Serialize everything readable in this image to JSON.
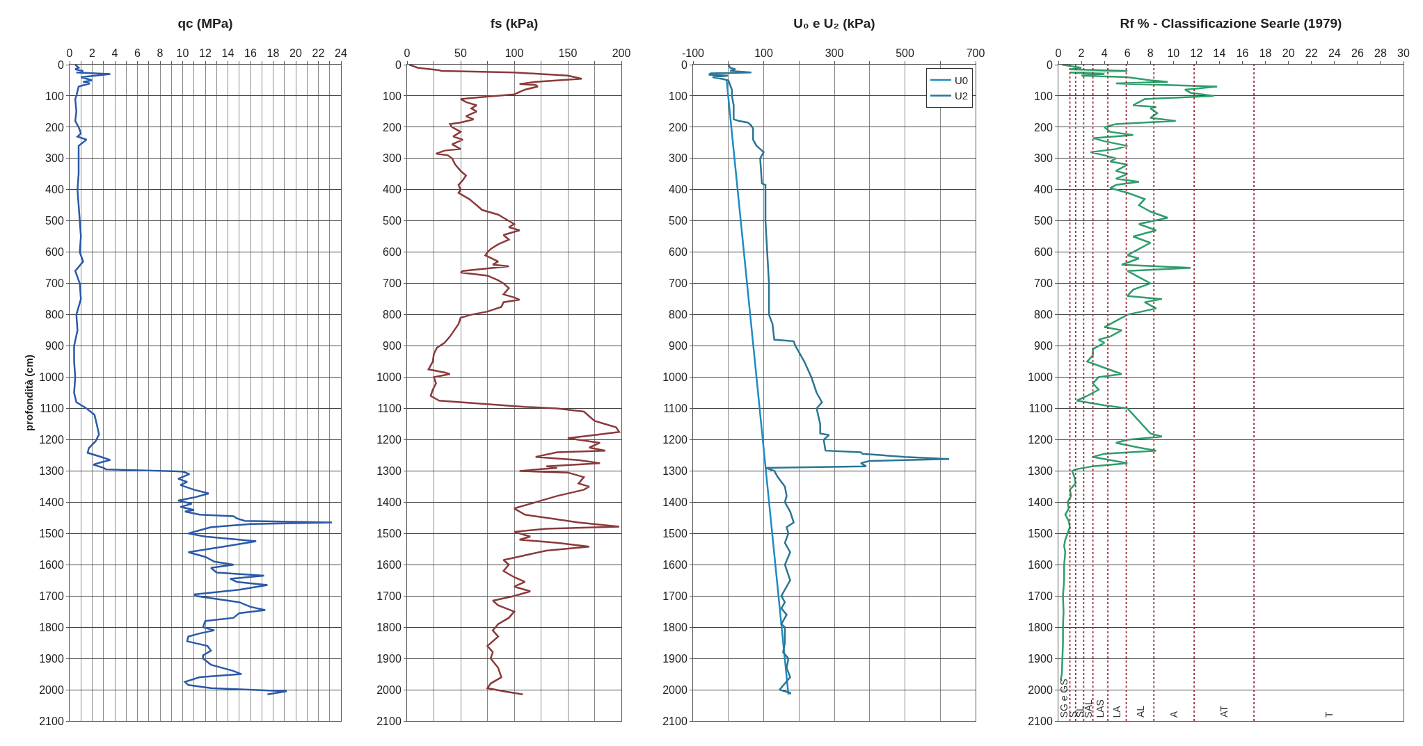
{
  "chart_data": [
    {
      "type": "line",
      "title": "qc (MPa)",
      "ylabel": "profondità (cm)",
      "xlim": [
        0,
        24
      ],
      "ylim": [
        2100,
        0
      ],
      "xticks": [
        0,
        {
          "value": 1,
          "label": null
        },
        2,
        {
          "value": 3,
          "label": null
        },
        4,
        {
          "value": 5,
          "label": null
        },
        6,
        {
          "value": 7,
          "label": null
        },
        8,
        {
          "value": 9,
          "label": null
        },
        10,
        {
          "value": 11,
          "label": null
        },
        12,
        {
          "value": 13,
          "label": null
        },
        14,
        {
          "value": 15,
          "label": null
        },
        16,
        {
          "value": 17,
          "label": null
        },
        18,
        {
          "value": 19,
          "label": null
        },
        20,
        {
          "value": 21,
          "label": null
        },
        22,
        {
          "value": 23,
          "label": null
        },
        24
      ],
      "yticks": [
        0,
        100,
        200,
        300,
        400,
        500,
        600,
        700,
        800,
        900,
        1000,
        1100,
        1200,
        1300,
        1400,
        1500,
        1600,
        1700,
        1800,
        1900,
        2000,
        2100
      ],
      "grid": true,
      "legend": false,
      "series": [
        {
          "color": "#2a5aa8",
          "x": [
            0.5,
            0.8,
            0.5,
            1.2,
            0.6,
            3.6,
            1.0,
            2.0,
            1.2,
            1.8,
            0.8,
            0.6,
            0.5,
            0.6,
            0.5,
            0.8,
            1.0,
            0.7,
            1.5,
            0.8,
            0.8,
            0.8,
            0.7,
            0.9,
            1.0,
            0.9,
            1.2,
            0.5,
            0.9,
            1.0,
            0.6,
            0.7,
            0.4,
            0.4,
            0.5,
            0.4,
            0.6,
            1.5,
            2.2,
            2.4,
            2.6,
            2.3,
            1.7,
            1.6,
            2.6,
            3.6,
            2.6,
            2.1,
            3.0,
            3.2,
            10.0,
            10.6,
            9.6,
            10.4,
            9.8,
            11.0,
            12.3,
            11.0,
            9.6,
            10.8,
            9.8,
            11.0,
            10.2,
            11.5,
            14.5,
            14.8,
            15.5,
            23.2,
            16.0,
            12.5,
            11.5,
            10.5,
            12.0,
            16.5,
            14.0,
            10.5,
            12.0,
            12.8,
            14.5,
            12.5,
            13.0,
            17.2,
            14.2,
            14.8,
            17.5,
            15.0,
            11.0,
            11.2,
            15.0,
            16.0,
            17.3,
            15.0,
            14.5,
            12.0,
            11.8,
            12.8,
            11.5,
            10.5,
            10.4,
            12.2,
            12.5,
            11.8,
            11.8,
            12.5,
            14.5,
            15.2,
            11.5,
            10.2,
            10.5,
            12.5,
            19.2,
            17.5
          ],
          "values": [
            0,
            10,
            15,
            20,
            25,
            30,
            40,
            50,
            55,
            60,
            70,
            100,
            110,
            150,
            180,
            200,
            220,
            230,
            240,
            260,
            300,
            350,
            400,
            500,
            550,
            600,
            630,
            660,
            700,
            750,
            800,
            850,
            900,
            950,
            1000,
            1050,
            1080,
            1100,
            1120,
            1150,
            1183,
            1205,
            1227,
            1242,
            1253,
            1265,
            1274,
            1280,
            1290,
            1295,
            1302,
            1310,
            1325,
            1335,
            1345,
            1360,
            1372,
            1385,
            1395,
            1405,
            1415,
            1425,
            1430,
            1440,
            1445,
            1452,
            1460,
            1465,
            1470,
            1480,
            1490,
            1500,
            1510,
            1525,
            1540,
            1560,
            1575,
            1590,
            1600,
            1610,
            1625,
            1635,
            1645,
            1655,
            1665,
            1680,
            1695,
            1700,
            1720,
            1735,
            1745,
            1755,
            1770,
            1780,
            1800,
            1810,
            1820,
            1830,
            1845,
            1860,
            1875,
            1890,
            1900,
            1920,
            1940,
            1950,
            1960,
            1975,
            1985,
            1995,
            2005,
            2015
          ]
        }
      ]
    },
    {
      "type": "line",
      "title": "fs (kPa)",
      "xlim": [
        0,
        200
      ],
      "ylim": [
        2100,
        0
      ],
      "xticks": [
        0,
        {
          "value": 25,
          "label": null
        },
        50,
        {
          "value": 75,
          "label": null
        },
        100,
        {
          "value": 125,
          "label": null
        },
        150,
        {
          "value": 175,
          "label": null
        },
        200
      ],
      "yticks": [
        0,
        100,
        200,
        300,
        400,
        500,
        600,
        700,
        800,
        900,
        1000,
        1100,
        1200,
        1300,
        1400,
        1500,
        1600,
        1700,
        1800,
        1900,
        2000,
        2100
      ],
      "grid": true,
      "legend": false,
      "series": [
        {
          "color": "#8b3a3a",
          "x": [
            2,
            10,
            30,
            32,
            100,
            150,
            163,
            120,
            105,
            120,
            122,
            110,
            100,
            65,
            50,
            55,
            65,
            60,
            65,
            55,
            62,
            50,
            40,
            42,
            50,
            43,
            52,
            42,
            50,
            35,
            27,
            38,
            42,
            45,
            50,
            55,
            52,
            48,
            50,
            48,
            58,
            65,
            70,
            85,
            90,
            95,
            100,
            95,
            105,
            90,
            95,
            85,
            78,
            75,
            73,
            85,
            80,
            95,
            52,
            50,
            75,
            85,
            90,
            95,
            90,
            100,
            105,
            90,
            88,
            75,
            60,
            50,
            48,
            45,
            40,
            35,
            28,
            25,
            24,
            20,
            35,
            40,
            25,
            27,
            24,
            22,
            30,
            70,
            110,
            140,
            165,
            170,
            175,
            185,
            195,
            198,
            175,
            150,
            180,
            170,
            185,
            140,
            120,
            160,
            180,
            130,
            140,
            105,
            150,
            165,
            160,
            170,
            165,
            140,
            120,
            100,
            110,
            130,
            160,
            198,
            130,
            100,
            115,
            105,
            140,
            170,
            130,
            110,
            90,
            95,
            90,
            100,
            110,
            100,
            115,
            100,
            80,
            85,
            100,
            95,
            85,
            80,
            85,
            75,
            80,
            78,
            85,
            88,
            78,
            75,
            90,
            108
          ],
          "values": [
            0,
            10,
            18,
            20,
            25,
            35,
            45,
            55,
            62,
            65,
            70,
            80,
            95,
            105,
            110,
            120,
            130,
            140,
            150,
            165,
            175,
            185,
            190,
            200,
            215,
            230,
            240,
            255,
            270,
            275,
            285,
            290,
            300,
            320,
            340,
            355,
            370,
            385,
            400,
            410,
            430,
            450,
            465,
            480,
            490,
            500,
            510,
            520,
            530,
            545,
            560,
            575,
            590,
            600,
            610,
            630,
            640,
            645,
            660,
            665,
            675,
            690,
            700,
            715,
            735,
            745,
            752,
            760,
            775,
            790,
            800,
            810,
            830,
            845,
            870,
            890,
            905,
            925,
            950,
            975,
            985,
            990,
            1000,
            1020,
            1040,
            1060,
            1075,
            1085,
            1095,
            1100,
            1110,
            1125,
            1140,
            1150,
            1160,
            1175,
            1185,
            1195,
            1210,
            1225,
            1235,
            1240,
            1255,
            1265,
            1275,
            1285,
            1290,
            1300,
            1305,
            1320,
            1340,
            1350,
            1360,
            1380,
            1400,
            1420,
            1440,
            1450,
            1465,
            1478,
            1485,
            1495,
            1510,
            1520,
            1530,
            1542,
            1555,
            1570,
            1585,
            1600,
            1620,
            1640,
            1655,
            1670,
            1685,
            1700,
            1715,
            1730,
            1750,
            1770,
            1790,
            1810,
            1830,
            1860,
            1880,
            1900,
            1930,
            1960,
            1980,
            1995,
            2005,
            2015
          ]
        }
      ]
    },
    {
      "type": "line",
      "title": "U₀ e U₂ (kPa)",
      "xlim": [
        -100,
        700
      ],
      "ylim": [
        2100,
        0
      ],
      "xticks": [
        -100,
        {
          "value": 0,
          "label": null
        },
        100,
        {
          "value": 200,
          "label": null
        },
        300,
        {
          "value": 400,
          "label": null
        },
        500,
        {
          "value": 600,
          "label": null
        },
        700
      ],
      "yticks": [
        0,
        100,
        200,
        300,
        400,
        500,
        600,
        700,
        800,
        900,
        1000,
        1100,
        1200,
        1300,
        1400,
        1500,
        1600,
        1700,
        1800,
        1900,
        2000,
        2100
      ],
      "grid": true,
      "legend": "top right",
      "series": [
        {
          "name": "U0",
          "color": "#1e8bc3",
          "x": [
            -5,
            170
          ],
          "values": [
            50,
            2015
          ]
        },
        {
          "name": "U2",
          "color": "#2a7595",
          "x": [
            0,
            5,
            20,
            5,
            65,
            -50,
            -55,
            0,
            -45,
            -20,
            0,
            10,
            10,
            15,
            15,
            15,
            30,
            55,
            65,
            70,
            70,
            80,
            90,
            100,
            95,
            90,
            95,
            105,
            105,
            105,
            110,
            115,
            115,
            125,
            130,
            185,
            190,
            215,
            235,
            250,
            265,
            250,
            260,
            260,
            285,
            270,
            275,
            375,
            380,
            500,
            625,
            400,
            375,
            390,
            105,
            130,
            140,
            160,
            165,
            160,
            175,
            185,
            165,
            170,
            160,
            175,
            160,
            175,
            150,
            160,
            150,
            165,
            150,
            160,
            160,
            155,
            170,
            165,
            175,
            160,
            145,
            175,
            175
          ],
          "values": [
            0,
            10,
            15,
            20,
            25,
            28,
            32,
            35,
            40,
            45,
            50,
            80,
            100,
            130,
            160,
            175,
            180,
            185,
            195,
            205,
            240,
            260,
            270,
            280,
            290,
            300,
            380,
            385,
            400,
            500,
            600,
            700,
            800,
            830,
            880,
            885,
            900,
            950,
            1000,
            1050,
            1080,
            1100,
            1150,
            1180,
            1185,
            1200,
            1235,
            1240,
            1245,
            1255,
            1262,
            1268,
            1275,
            1285,
            1290,
            1300,
            1320,
            1350,
            1380,
            1400,
            1430,
            1465,
            1480,
            1500,
            1530,
            1560,
            1600,
            1650,
            1700,
            1720,
            1740,
            1760,
            1790,
            1800,
            1850,
            1880,
            1900,
            1930,
            1960,
            1980,
            2000,
            2010,
            2015
          ]
        }
      ]
    },
    {
      "type": "line",
      "title": "Rf % - Classificazione Searle (1979)",
      "xlim": [
        0,
        30
      ],
      "ylim": [
        2100,
        0
      ],
      "xticks": [
        0,
        2,
        4,
        6,
        8,
        10,
        12,
        14,
        16,
        18,
        20,
        22,
        24,
        26,
        28,
        30
      ],
      "yticks": [
        0,
        100,
        200,
        300,
        400,
        500,
        600,
        700,
        800,
        900,
        1000,
        1100,
        1200,
        1300,
        1400,
        1500,
        1600,
        1700,
        1800,
        1900,
        2000,
        2100
      ],
      "grid": "y",
      "legend": false,
      "ref_lines": [
        {
          "axis": "x",
          "value": 1,
          "color": "#a0303a",
          "line_style": "dotted"
        },
        {
          "axis": "x",
          "value": 1.5,
          "color": "#a0303a",
          "line_style": "dotted"
        },
        {
          "axis": "x",
          "value": 2.2,
          "color": "#a0303a",
          "line_style": "dotted"
        },
        {
          "axis": "x",
          "value": 3,
          "color": "#a0303a",
          "line_style": "dotted"
        },
        {
          "axis": "x",
          "value": 4.3,
          "color": "#a0303a",
          "line_style": "dotted"
        },
        {
          "axis": "x",
          "value": 5.9,
          "color": "#a0303a",
          "line_style": "dotted"
        },
        {
          "axis": "x",
          "value": 8.3,
          "color": "#a0303a",
          "line_style": "dotted"
        },
        {
          "axis": "x",
          "value": 11.8,
          "color": "#a0303a",
          "line_style": "dotted"
        },
        {
          "axis": "x",
          "value": 17,
          "color": "#a0303a",
          "line_style": "dotted"
        }
      ],
      "annotations": [
        "SG e GS",
        "S",
        "SL",
        "SAL",
        "LAS",
        "LA",
        "AL",
        "A",
        "AT",
        "T"
      ],
      "series": [
        {
          "color": "#2e9e6b",
          "x": [
            0.3,
            2,
            1,
            6,
            1,
            4,
            2,
            6,
            8,
            9.5,
            5,
            13.8,
            11,
            11.5,
            13.5,
            7.5,
            6.5,
            8.5,
            8,
            8.6,
            8,
            10.2,
            7.5,
            5,
            4,
            4.5,
            6.5,
            3,
            4,
            6,
            5,
            2.8,
            4,
            5,
            4.5,
            6,
            5,
            6,
            5,
            7,
            5,
            4.5,
            6,
            7.5,
            7,
            8,
            9.5,
            7,
            8.5,
            6.5,
            8,
            7,
            6,
            7,
            5.5,
            11.5,
            6,
            7,
            8,
            6.5,
            6,
            9,
            7.5,
            8.5,
            6,
            5,
            4,
            5.5,
            4.5,
            3.5,
            4,
            3,
            3,
            2.5,
            4,
            5.5,
            3.5,
            3,
            3.5,
            2.5,
            1.6,
            4,
            6,
            6.5,
            7,
            7.5,
            8,
            9,
            6,
            5,
            7,
            8.5,
            4,
            3,
            4.5,
            6,
            3,
            1.5,
            1.2,
            1.4,
            1.5,
            1.0,
            1.1,
            0.8,
            0.9,
            0.6,
            0.9,
            1.0,
            0.8,
            0.6,
            0.5,
            0.6,
            0.5,
            0.5,
            0.4,
            0.45,
            0.4,
            0.4,
            0.35,
            0.3,
            0.2
          ],
          "values": [
            0,
            10,
            15,
            20,
            25,
            30,
            35,
            40,
            50,
            55,
            60,
            70,
            80,
            90,
            100,
            110,
            130,
            135,
            140,
            155,
            170,
            180,
            185,
            190,
            200,
            215,
            225,
            235,
            245,
            260,
            270,
            280,
            290,
            300,
            310,
            320,
            340,
            350,
            365,
            375,
            385,
            395,
            410,
            430,
            450,
            470,
            490,
            510,
            530,
            550,
            570,
            590,
            610,
            620,
            640,
            650,
            660,
            680,
            700,
            720,
            740,
            750,
            760,
            780,
            800,
            820,
            840,
            850,
            870,
            880,
            890,
            910,
            930,
            950,
            970,
            990,
            1000,
            1020,
            1040,
            1060,
            1075,
            1090,
            1100,
            1120,
            1140,
            1160,
            1180,
            1190,
            1200,
            1210,
            1225,
            1235,
            1245,
            1255,
            1265,
            1275,
            1285,
            1295,
            1300,
            1320,
            1340,
            1360,
            1380,
            1400,
            1420,
            1440,
            1460,
            1480,
            1500,
            1520,
            1540,
            1560,
            1600,
            1650,
            1700,
            1750,
            1800,
            1850,
            1900,
            1950,
            1970
          ]
        }
      ]
    }
  ]
}
